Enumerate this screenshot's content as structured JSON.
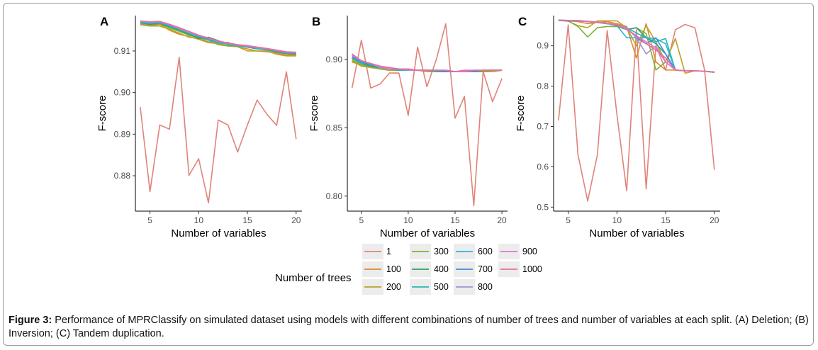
{
  "figure": {
    "caption_label": "Figure 3:",
    "caption_text": " Performance of MPRClassify on simulated dataset using models with different combinations of number of trees and number of variables at each split. (A) Deletion; (B) Inversion; (C) Tandem duplication."
  },
  "legend": {
    "title": "Number of trees",
    "entries": [
      {
        "label": "1",
        "color": "#E0837A"
      },
      {
        "label": "100",
        "color": "#D98A2B"
      },
      {
        "label": "200",
        "color": "#B8A325"
      },
      {
        "label": "300",
        "color": "#7FB332"
      },
      {
        "label": "400",
        "color": "#2DA06A"
      },
      {
        "label": "500",
        "color": "#25B7B0"
      },
      {
        "label": "600",
        "color": "#27B4E0"
      },
      {
        "label": "700",
        "color": "#3D8FD9"
      },
      {
        "label": "800",
        "color": "#A98FDB"
      },
      {
        "label": "900",
        "color": "#E274D8"
      },
      {
        "label": "1000",
        "color": "#EA6C9C"
      }
    ]
  },
  "chart_data": [
    {
      "type": "line",
      "panel_label": "A",
      "xlabel": "Number of variables",
      "ylabel": "F-score",
      "xlim": [
        3.5,
        20.6
      ],
      "ylim": [
        0.8715,
        0.9185
      ],
      "xticks": [
        5,
        10,
        15,
        20
      ],
      "xtick_labels": [
        "5",
        "10",
        "15",
        "20"
      ],
      "yticks": [
        0.88,
        0.89,
        0.9,
        0.91
      ],
      "ytick_labels": [
        "0.88",
        "0.89",
        "0.90",
        "0.91"
      ],
      "x": [
        4,
        5,
        6,
        7,
        8,
        9,
        10,
        11,
        12,
        13,
        14,
        15,
        16,
        17,
        18,
        19,
        20
      ],
      "series": [
        {
          "name": "1",
          "values": [
            0.8965,
            0.8762,
            0.8922,
            0.8912,
            0.9085,
            0.8801,
            0.8841,
            0.8735,
            0.8934,
            0.8922,
            0.8857,
            0.8922,
            0.8982,
            0.8948,
            0.8921,
            0.905,
            0.8888
          ]
        },
        {
          "name": "100",
          "values": [
            0.9163,
            0.916,
            0.9164,
            0.915,
            0.914,
            0.9135,
            0.9128,
            0.912,
            0.9118,
            0.9112,
            0.911,
            0.9105,
            0.91,
            0.9098,
            0.9095,
            0.909,
            0.909
          ]
        },
        {
          "name": "200",
          "values": [
            0.9164,
            0.916,
            0.916,
            0.9152,
            0.9143,
            0.9133,
            0.913,
            0.9122,
            0.9117,
            0.9121,
            0.911,
            0.91,
            0.91,
            0.91,
            0.9092,
            0.9088,
            0.9088
          ]
        },
        {
          "name": "300",
          "values": [
            0.9166,
            0.9163,
            0.9165,
            0.9155,
            0.9147,
            0.9138,
            0.9132,
            0.9126,
            0.9115,
            0.9112,
            0.9112,
            0.911,
            0.9106,
            0.9102,
            0.9097,
            0.9093,
            0.9092
          ]
        },
        {
          "name": "400",
          "values": [
            0.9168,
            0.9164,
            0.9167,
            0.9158,
            0.915,
            0.914,
            0.913,
            0.9133,
            0.9125,
            0.9115,
            0.9113,
            0.9109,
            0.9105,
            0.9103,
            0.9098,
            0.9094,
            0.9093
          ]
        },
        {
          "name": "500",
          "values": [
            0.9169,
            0.9166,
            0.9168,
            0.916,
            0.9152,
            0.9142,
            0.9134,
            0.9126,
            0.912,
            0.9116,
            0.9112,
            0.911,
            0.9106,
            0.9104,
            0.9099,
            0.9095,
            0.9094
          ]
        },
        {
          "name": "600",
          "values": [
            0.917,
            0.9167,
            0.9169,
            0.9161,
            0.9153,
            0.9145,
            0.9137,
            0.9128,
            0.9121,
            0.9117,
            0.9113,
            0.9111,
            0.9107,
            0.9104,
            0.91,
            0.9096,
            0.9095
          ]
        },
        {
          "name": "700",
          "values": [
            0.9171,
            0.9168,
            0.917,
            0.9162,
            0.9155,
            0.9146,
            0.9136,
            0.9129,
            0.9122,
            0.9118,
            0.9114,
            0.9111,
            0.9108,
            0.9105,
            0.91,
            0.9096,
            0.9095
          ]
        },
        {
          "name": "800",
          "values": [
            0.9171,
            0.9169,
            0.917,
            0.9163,
            0.9154,
            0.9145,
            0.9137,
            0.913,
            0.9123,
            0.9118,
            0.9114,
            0.9112,
            0.9108,
            0.9105,
            0.9101,
            0.9097,
            0.9096
          ]
        },
        {
          "name": "900",
          "values": [
            0.9172,
            0.917,
            0.9171,
            0.9163,
            0.9155,
            0.9146,
            0.9138,
            0.913,
            0.9124,
            0.9119,
            0.9115,
            0.9112,
            0.9109,
            0.9106,
            0.9101,
            0.9097,
            0.9096
          ]
        },
        {
          "name": "1000",
          "values": [
            0.9172,
            0.917,
            0.9171,
            0.9164,
            0.9156,
            0.9147,
            0.9138,
            0.9131,
            0.9124,
            0.9119,
            0.9115,
            0.9113,
            0.9109,
            0.9106,
            0.9102,
            0.9098,
            0.9097
          ]
        }
      ]
    },
    {
      "type": "line",
      "panel_label": "B",
      "xlabel": "Number of variables",
      "ylabel": "F-score",
      "xlim": [
        3.5,
        20.6
      ],
      "ylim": [
        0.789,
        0.932
      ],
      "xticks": [
        5,
        10,
        15,
        20
      ],
      "xtick_labels": [
        "5",
        "10",
        "15",
        "20"
      ],
      "yticks": [
        0.8,
        0.85,
        0.9
      ],
      "ytick_labels": [
        "0.80",
        "0.85",
        "0.90"
      ],
      "x": [
        4,
        5,
        6,
        7,
        8,
        9,
        10,
        11,
        12,
        13,
        14,
        15,
        16,
        17,
        18,
        19,
        20
      ],
      "series": [
        {
          "name": "1",
          "values": [
            0.879,
            0.914,
            0.879,
            0.882,
            0.89,
            0.89,
            0.859,
            0.909,
            0.88,
            0.9,
            0.926,
            0.857,
            0.873,
            0.793,
            0.891,
            0.869,
            0.886
          ]
        },
        {
          "name": "100",
          "values": [
            0.898,
            0.896,
            0.894,
            0.893,
            0.892,
            0.892,
            0.892,
            0.892,
            0.891,
            0.891,
            0.891,
            0.891,
            0.891,
            0.891,
            0.891,
            0.891,
            0.892
          ]
        },
        {
          "name": "200",
          "values": [
            0.899,
            0.895,
            0.894,
            0.893,
            0.892,
            0.892,
            0.892,
            0.892,
            0.892,
            0.891,
            0.891,
            0.891,
            0.891,
            0.891,
            0.891,
            0.891,
            0.892
          ]
        },
        {
          "name": "300",
          "values": [
            0.9,
            0.896,
            0.895,
            0.893,
            0.893,
            0.892,
            0.892,
            0.892,
            0.892,
            0.891,
            0.891,
            0.891,
            0.891,
            0.891,
            0.891,
            0.892,
            0.892
          ]
        },
        {
          "name": "400",
          "values": [
            0.901,
            0.897,
            0.895,
            0.894,
            0.893,
            0.892,
            0.892,
            0.892,
            0.892,
            0.891,
            0.891,
            0.891,
            0.891,
            0.891,
            0.892,
            0.892,
            0.892
          ]
        },
        {
          "name": "500",
          "values": [
            0.901,
            0.897,
            0.896,
            0.894,
            0.893,
            0.892,
            0.892,
            0.892,
            0.892,
            0.891,
            0.891,
            0.891,
            0.891,
            0.891,
            0.892,
            0.892,
            0.892
          ]
        },
        {
          "name": "600",
          "values": [
            0.902,
            0.898,
            0.896,
            0.894,
            0.893,
            0.893,
            0.892,
            0.892,
            0.892,
            0.892,
            0.891,
            0.891,
            0.891,
            0.891,
            0.892,
            0.892,
            0.892
          ]
        },
        {
          "name": "700",
          "values": [
            0.902,
            0.898,
            0.896,
            0.894,
            0.893,
            0.893,
            0.892,
            0.892,
            0.892,
            0.892,
            0.891,
            0.891,
            0.891,
            0.891,
            0.892,
            0.892,
            0.892
          ]
        },
        {
          "name": "800",
          "values": [
            0.903,
            0.899,
            0.897,
            0.894,
            0.893,
            0.893,
            0.892,
            0.892,
            0.892,
            0.892,
            0.892,
            0.891,
            0.891,
            0.892,
            0.892,
            0.892,
            0.892
          ]
        },
        {
          "name": "900",
          "values": [
            0.903,
            0.899,
            0.897,
            0.895,
            0.893,
            0.893,
            0.893,
            0.892,
            0.892,
            0.892,
            0.892,
            0.891,
            0.891,
            0.892,
            0.892,
            0.892,
            0.892
          ]
        },
        {
          "name": "1000",
          "values": [
            0.904,
            0.899,
            0.897,
            0.895,
            0.894,
            0.893,
            0.893,
            0.892,
            0.892,
            0.892,
            0.892,
            0.891,
            0.892,
            0.892,
            0.892,
            0.892,
            0.892
          ]
        }
      ]
    },
    {
      "type": "line",
      "panel_label": "C",
      "xlabel": "Number of variables",
      "ylabel": "F-score",
      "xlim": [
        3.5,
        20.6
      ],
      "ylim": [
        0.49,
        0.975
      ],
      "xticks": [
        5,
        10,
        15,
        20
      ],
      "xtick_labels": [
        "5",
        "10",
        "15",
        "20"
      ],
      "yticks": [
        0.5,
        0.6,
        0.7,
        0.8,
        0.9
      ],
      "ytick_labels": [
        "0.5",
        "0.6",
        "0.7",
        "0.8",
        "0.9"
      ],
      "x": [
        4,
        5,
        6,
        7,
        8,
        9,
        10,
        11,
        12,
        13,
        14,
        15,
        16,
        17,
        18,
        19,
        20
      ],
      "series": [
        {
          "name": "1",
          "values": [
            0.715,
            0.952,
            0.63,
            0.515,
            0.63,
            0.938,
            0.73,
            0.54,
            0.94,
            0.545,
            0.9,
            0.84,
            0.94,
            0.953,
            0.945,
            0.84,
            0.593
          ]
        },
        {
          "name": "100",
          "values": [
            0.963,
            0.962,
            0.96,
            0.955,
            0.958,
            0.96,
            0.955,
            0.948,
            0.87,
            0.955,
            0.86,
            0.84,
            0.84,
            0.838,
            0.838,
            0.837,
            0.834
          ]
        },
        {
          "name": "200",
          "values": [
            0.963,
            0.961,
            0.95,
            0.945,
            0.962,
            0.962,
            0.962,
            0.945,
            0.9,
            0.95,
            0.91,
            0.86,
            0.918,
            0.832,
            0.838,
            0.837,
            0.834
          ]
        },
        {
          "name": "300",
          "values": [
            0.963,
            0.962,
            0.948,
            0.922,
            0.945,
            0.948,
            0.948,
            0.94,
            0.945,
            0.93,
            0.84,
            0.86,
            0.84,
            0.838,
            0.838,
            0.837,
            0.834
          ]
        },
        {
          "name": "400",
          "values": [
            0.963,
            0.962,
            0.962,
            0.96,
            0.958,
            0.955,
            0.952,
            0.94,
            0.945,
            0.92,
            0.905,
            0.88,
            0.84,
            0.838,
            0.838,
            0.837,
            0.835
          ]
        },
        {
          "name": "500",
          "values": [
            0.963,
            0.962,
            0.962,
            0.96,
            0.958,
            0.956,
            0.952,
            0.945,
            0.932,
            0.92,
            0.91,
            0.918,
            0.84,
            0.838,
            0.838,
            0.837,
            0.835
          ]
        },
        {
          "name": "600",
          "values": [
            0.963,
            0.962,
            0.963,
            0.96,
            0.958,
            0.955,
            0.95,
            0.92,
            0.92,
            0.92,
            0.918,
            0.905,
            0.84,
            0.838,
            0.838,
            0.837,
            0.835
          ]
        },
        {
          "name": "700",
          "values": [
            0.963,
            0.962,
            0.962,
            0.96,
            0.958,
            0.955,
            0.95,
            0.945,
            0.92,
            0.905,
            0.92,
            0.88,
            0.84,
            0.838,
            0.838,
            0.837,
            0.835
          ]
        },
        {
          "name": "800",
          "values": [
            0.963,
            0.963,
            0.962,
            0.96,
            0.958,
            0.955,
            0.952,
            0.945,
            0.92,
            0.88,
            0.9,
            0.86,
            0.84,
            0.838,
            0.838,
            0.837,
            0.835
          ]
        },
        {
          "name": "900",
          "values": [
            0.964,
            0.963,
            0.962,
            0.961,
            0.958,
            0.956,
            0.952,
            0.94,
            0.925,
            0.91,
            0.895,
            0.86,
            0.84,
            0.838,
            0.838,
            0.837,
            0.835
          ]
        },
        {
          "name": "1000",
          "values": [
            0.964,
            0.963,
            0.963,
            0.961,
            0.959,
            0.956,
            0.952,
            0.942,
            0.925,
            0.905,
            0.89,
            0.87,
            0.84,
            0.838,
            0.838,
            0.837,
            0.835
          ]
        }
      ]
    }
  ]
}
